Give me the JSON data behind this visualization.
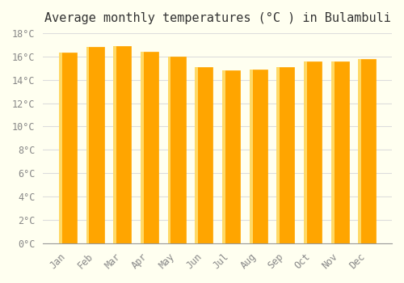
{
  "title": "Average monthly temperatures (°C ) in Bulambuli",
  "months": [
    "Jan",
    "Feb",
    "Mar",
    "Apr",
    "May",
    "Jun",
    "Jul",
    "Aug",
    "Sep",
    "Oct",
    "Nov",
    "Dec"
  ],
  "values": [
    16.3,
    16.8,
    16.9,
    16.4,
    16.0,
    15.1,
    14.8,
    14.9,
    15.1,
    15.6,
    15.6,
    15.8
  ],
  "bar_color_main": "#FFA500",
  "bar_color_gradient_top": "#FFD700",
  "ylim": [
    0,
    18
  ],
  "yticks": [
    0,
    2,
    4,
    6,
    8,
    10,
    12,
    14,
    16,
    18
  ],
  "background_color": "#FFFFF0",
  "grid_color": "#DDDDDD",
  "title_fontsize": 11,
  "tick_fontsize": 8.5
}
